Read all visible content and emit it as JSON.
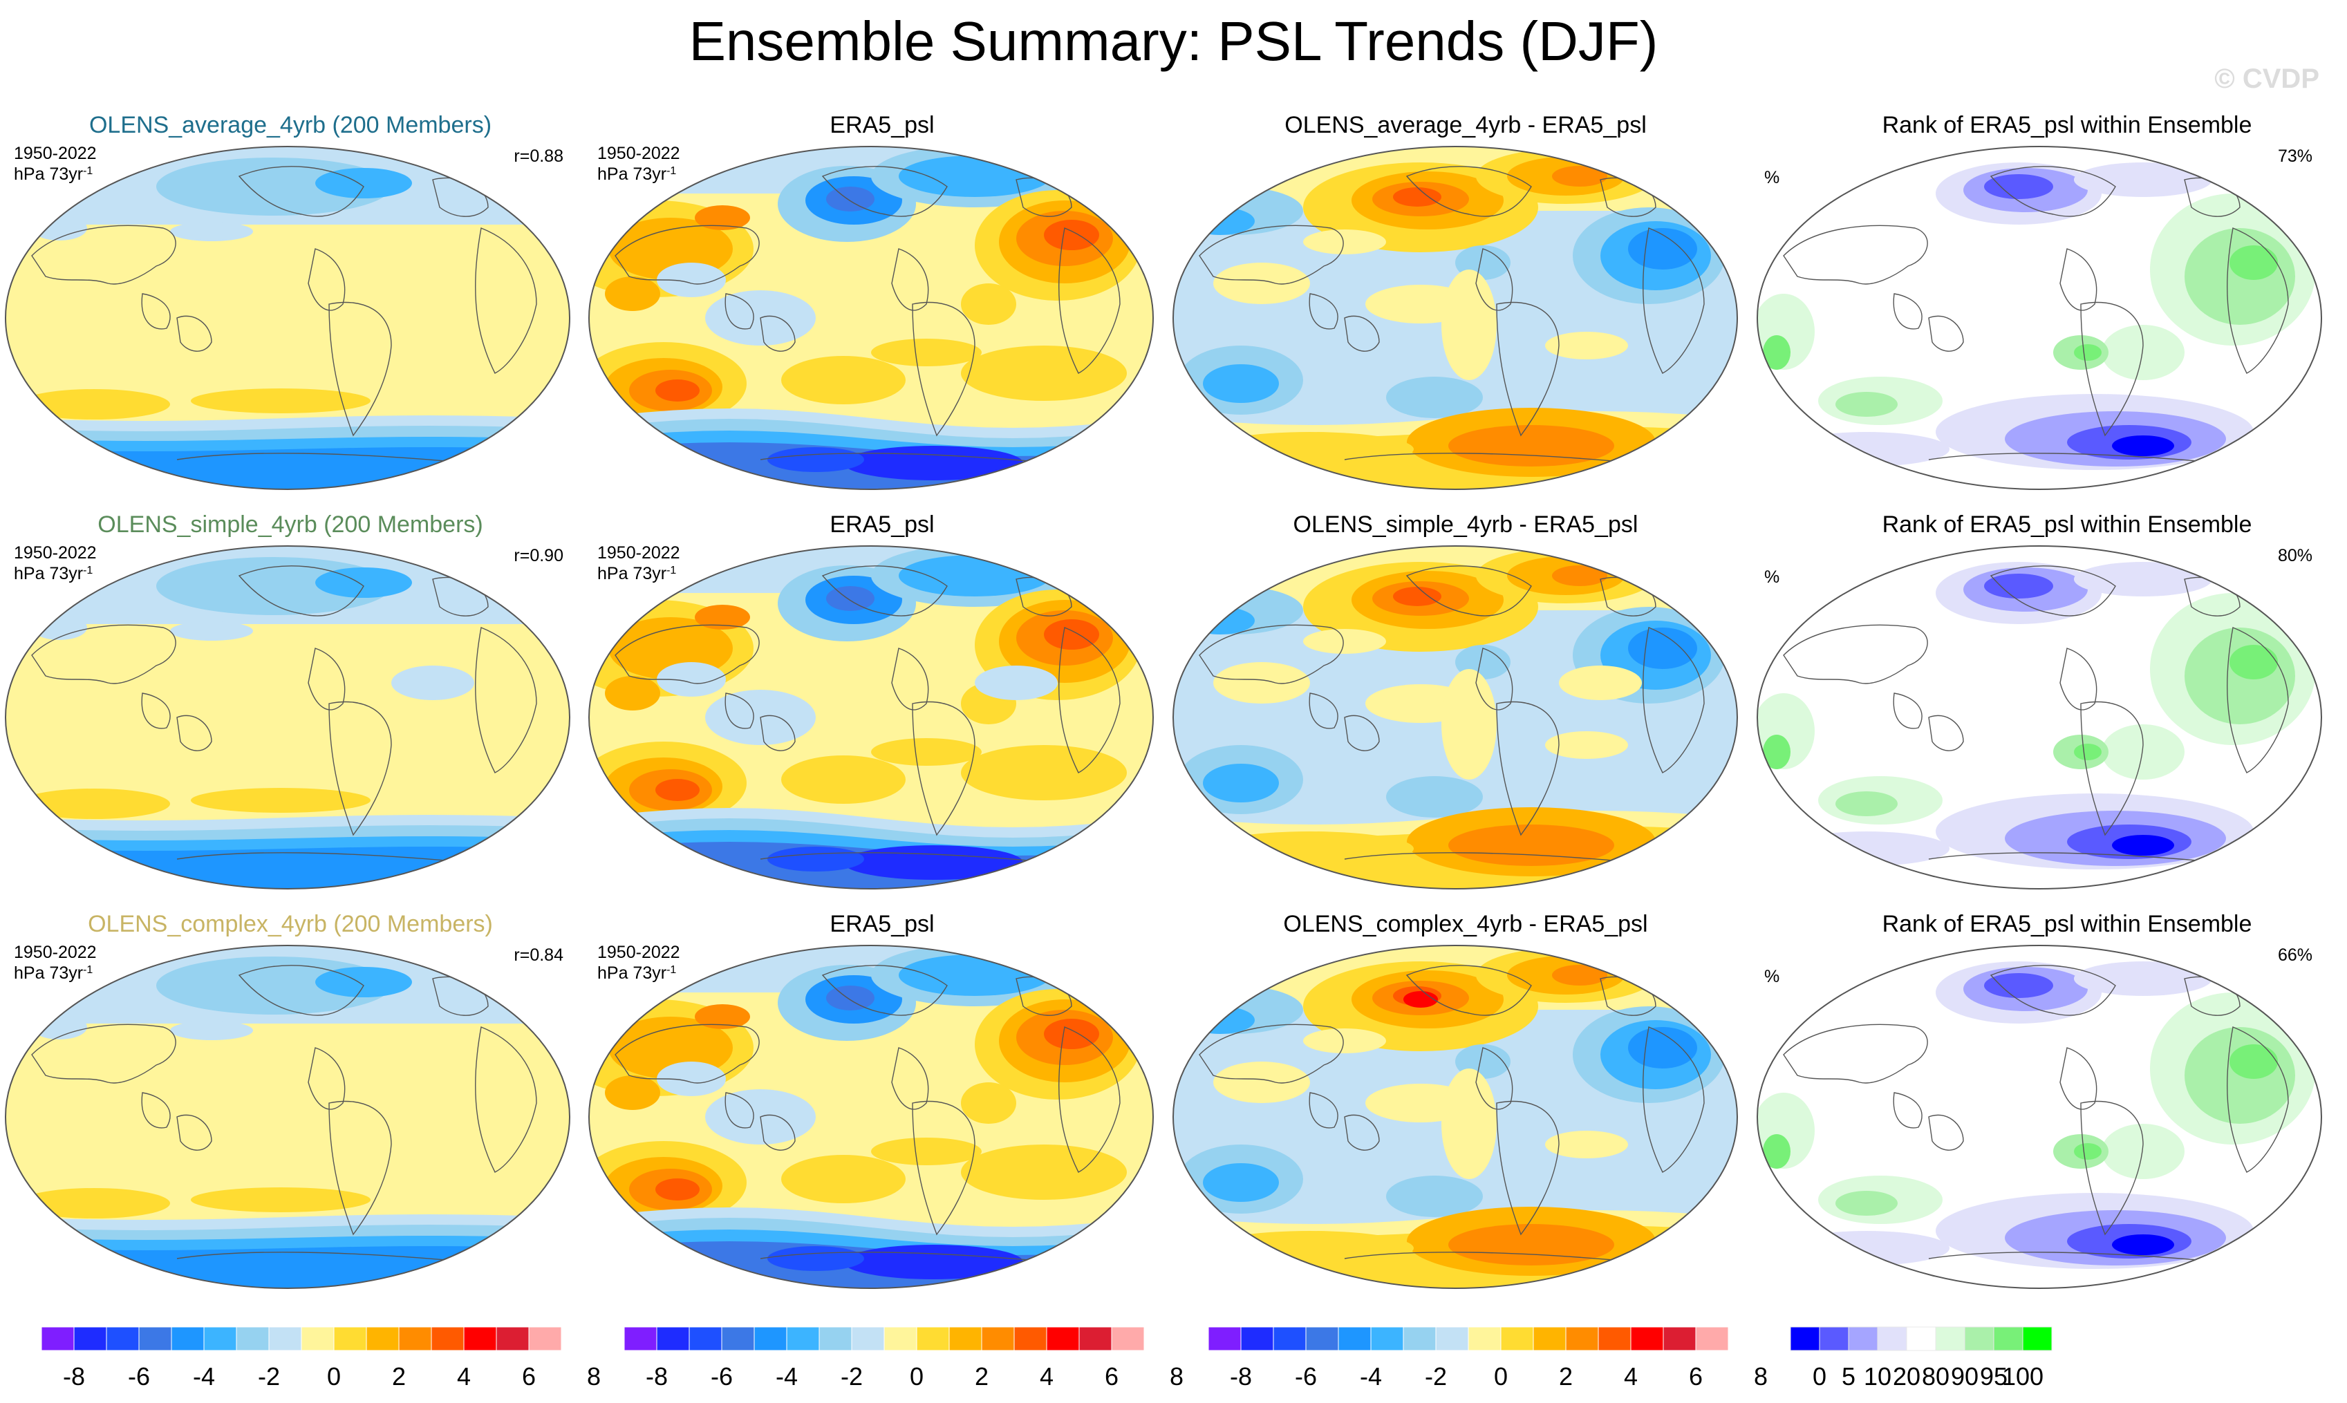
{
  "title": "Ensemble Summary: PSL Trends (DJF)",
  "watermark": "© CVDP",
  "colors": {
    "trend": [
      "#7f1eff",
      "#1e2cff",
      "#1e50ff",
      "#3c78e6",
      "#1e96ff",
      "#3cb4ff",
      "#96d2f0",
      "#c3e1f5",
      "#fff59b",
      "#ffdc32",
      "#ffb400",
      "#ff8c00",
      "#ff5a00",
      "#ff0000",
      "#dc1e32",
      "#ffaaaa"
    ],
    "rank": [
      "#0000ff",
      "#5a5aff",
      "#a5a5ff",
      "#e1e1fa",
      "#ffffff",
      "#dcfadc",
      "#aaf0aa",
      "#78f078",
      "#00ff00"
    ],
    "map_outline": "#555555",
    "model_titles": [
      "#1e6e8c",
      "#5a8c5a",
      "#c8b464"
    ]
  },
  "rows": [
    {
      "model_title": "OLENS_average_4yrb (200 Members)",
      "period": "1950-2022",
      "units": "hPa 73yr",
      "units_sup": "-1",
      "r": "r=0.88",
      "obs_title": "ERA5_psl",
      "diff_title": "OLENS_average_4yrb - ERA5_psl",
      "rank_title": "Rank of ERA5_psl within Ensemble",
      "rank_unit": "%",
      "rank_pct": "73%"
    },
    {
      "model_title": "OLENS_simple_4yrb (200 Members)",
      "period": "1950-2022",
      "units": "hPa 73yr",
      "units_sup": "-1",
      "r": "r=0.90",
      "obs_title": "ERA5_psl",
      "diff_title": "OLENS_simple_4yrb - ERA5_psl",
      "rank_title": "Rank of ERA5_psl within Ensemble",
      "rank_unit": "%",
      "rank_pct": "80%"
    },
    {
      "model_title": "OLENS_complex_4yrb (200 Members)",
      "period": "1950-2022",
      "units": "hPa 73yr",
      "units_sup": "-1",
      "r": "r=0.84",
      "obs_title": "ERA5_psl",
      "diff_title": "OLENS_complex_4yrb - ERA5_psl",
      "rank_title": "Rank of ERA5_psl within Ensemble",
      "rank_unit": "%",
      "rank_pct": "66%"
    }
  ],
  "colorbars": {
    "trend_labels": [
      "-8",
      "-6",
      "-4",
      "-2",
      "0",
      "2",
      "4",
      "6",
      "8"
    ],
    "rank_labels": [
      "0",
      "5",
      "10",
      "20",
      "80",
      "90",
      "95",
      "100"
    ]
  },
  "chart_data": [
    {
      "type": "heatmap",
      "title": "OLENS_average_4yrb (200 Members)",
      "units": "hPa 73yr-1",
      "color_levels": [
        -8,
        -7,
        -6,
        -5,
        -4,
        -3,
        -2,
        -1,
        0,
        1,
        2,
        3,
        4,
        5,
        6,
        7,
        8
      ],
      "pattern_centers": [
        {
          "lon": 180,
          "lat": 65,
          "value": -1.5
        },
        {
          "lon": 60,
          "lat": -55,
          "value": 1.2
        },
        {
          "lon": 150,
          "lat": -52,
          "value": 1.2
        },
        {
          "lon": 180,
          "lat": -68,
          "value": -4.5
        }
      ]
    },
    {
      "type": "heatmap",
      "title": "ERA5_psl",
      "units": "hPa 73yr-1",
      "color_levels": [
        -8,
        -7,
        -6,
        -5,
        -4,
        -3,
        -2,
        -1,
        0,
        1,
        2,
        3,
        4,
        5,
        6,
        7,
        8
      ],
      "pattern_centers": [
        {
          "lon": 95,
          "lat": 50,
          "value": 3
        },
        {
          "lon": 170,
          "lat": 50,
          "value": -4
        },
        {
          "lon": 240,
          "lat": 70,
          "value": -4
        },
        {
          "lon": 300,
          "lat": 45,
          "value": 5
        },
        {
          "lon": 40,
          "lat": -45,
          "value": 5
        },
        {
          "lon": 150,
          "lat": -40,
          "value": 3
        },
        {
          "lon": 200,
          "lat": -72,
          "value": -7
        }
      ]
    },
    {
      "type": "heatmap",
      "title": "OLENS_average_4yrb - ERA5_psl",
      "units": "hPa 73yr-1",
      "color_levels": [
        -8,
        -7,
        -6,
        -5,
        -4,
        -3,
        -2,
        -1,
        0,
        1,
        2,
        3,
        4,
        5,
        6,
        7,
        8
      ],
      "pattern_centers": [
        {
          "lon": 170,
          "lat": 50,
          "value": 4
        },
        {
          "lon": 240,
          "lat": 70,
          "value": 3
        },
        {
          "lon": 300,
          "lat": 45,
          "value": -4
        },
        {
          "lon": 40,
          "lat": -45,
          "value": -3
        },
        {
          "lon": 200,
          "lat": -65,
          "value": 4
        }
      ]
    },
    {
      "type": "heatmap",
      "title": "Rank of ERA5_psl within Ensemble",
      "units": "%",
      "color_levels": [
        0,
        5,
        10,
        20,
        80,
        90,
        95,
        100
      ],
      "pattern_centers": [
        {
          "lon": 200,
          "lat": -70,
          "value": 3
        },
        {
          "lon": 240,
          "lat": 65,
          "value": 8
        },
        {
          "lon": 300,
          "lat": 40,
          "value": 95
        },
        {
          "lon": 270,
          "lat": -15,
          "value": 92
        }
      ]
    }
  ]
}
